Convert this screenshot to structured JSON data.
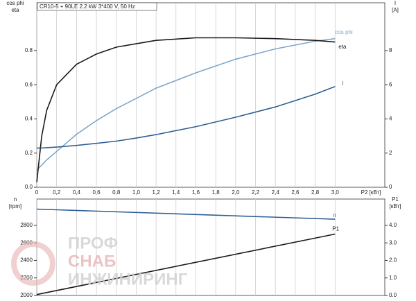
{
  "chart_data": [
    {
      "type": "line",
      "title": "CR10-5 + 90LE   2.2 kW   3*400 V, 50 Hz",
      "ylabel": [
        "cos phi",
        "eta"
      ],
      "y2label": [
        "I",
        "[A]"
      ],
      "xlabel": "P2 [кВт]",
      "x": [
        0,
        0.05,
        0.1,
        0.2,
        0.4,
        0.6,
        0.8,
        1.0,
        1.2,
        1.6,
        2.0,
        2.4,
        2.8,
        3.0
      ],
      "xlim": [
        0,
        3.5
      ],
      "xticks": [
        {
          "value": 0,
          "label": "0"
        },
        {
          "value": 0.2,
          "label": "0,2"
        },
        {
          "value": 0.4,
          "label": "0,4"
        },
        {
          "value": 0.6,
          "label": "0,6"
        },
        {
          "value": 0.8,
          "label": "0,8"
        },
        {
          "value": 1.0,
          "label": "1,0"
        },
        {
          "value": 1.2,
          "label": "1,2"
        },
        {
          "value": 1.4,
          "label": "1,4"
        },
        {
          "value": 1.6,
          "label": "1,6"
        },
        {
          "value": 1.8,
          "label": "1,8"
        },
        {
          "value": 2.0,
          "label": "2,0"
        },
        {
          "value": 2.2,
          "label": "2,2"
        },
        {
          "value": 2.4,
          "label": "2,4"
        },
        {
          "value": 2.6,
          "label": "2,6"
        },
        {
          "value": 2.8,
          "label": "2,8"
        },
        {
          "value": 3.0,
          "label": "3,0"
        }
      ],
      "ylim": [
        0,
        1.08
      ],
      "yticks": [
        {
          "value": 0,
          "label": "0.0"
        },
        0.2,
        0.4,
        0.6,
        0.8
      ],
      "y2lim": [
        0,
        10.8
      ],
      "y2ticks": [
        0,
        2,
        4,
        6,
        8
      ],
      "grid": true,
      "series": [
        {
          "name": "cos phi",
          "color": "#7fa6c8",
          "values": [
            0.1,
            0.13,
            0.16,
            0.21,
            0.31,
            0.39,
            0.46,
            0.52,
            0.58,
            0.67,
            0.75,
            0.81,
            0.855,
            0.87
          ]
        },
        {
          "name": "eta",
          "color": "#1a1a1a",
          "values": [
            0.03,
            0.3,
            0.45,
            0.6,
            0.72,
            0.78,
            0.82,
            0.84,
            0.86,
            0.875,
            0.875,
            0.87,
            0.86,
            0.85
          ]
        },
        {
          "name": "I",
          "color": "#2f5f94",
          "axis": "y2",
          "values": [
            2.3,
            2.3,
            2.32,
            2.35,
            2.45,
            2.57,
            2.7,
            2.88,
            3.08,
            3.55,
            4.1,
            4.7,
            5.45,
            5.9
          ]
        }
      ]
    },
    {
      "type": "line",
      "ylabel": [
        "n",
        "[rpm]"
      ],
      "y2label": [
        "P1",
        "[кВт]"
      ],
      "x": [
        0,
        3.0
      ],
      "xlim": [
        0,
        3.5
      ],
      "xticks": [
        0,
        0.2,
        0.4,
        0.6,
        0.8,
        1.0,
        1.2,
        1.4,
        1.6,
        1.8,
        2.0,
        2.2,
        2.4,
        2.6,
        2.8,
        3.0
      ],
      "ylim": [
        2000,
        3100
      ],
      "yticks": [
        2000,
        2200,
        2400,
        2600,
        2800
      ],
      "y2lim": [
        0,
        5.5
      ],
      "y2ticks": [
        {
          "value": 0,
          "label": "0.0"
        },
        {
          "value": 1,
          "label": "1.0"
        },
        {
          "value": 2,
          "label": "2.0"
        },
        {
          "value": 3,
          "label": "3.0"
        },
        {
          "value": 4,
          "label": "4.0"
        }
      ],
      "grid": true,
      "series": [
        {
          "name": "n",
          "color": "#2f5f94",
          "values": [
            2985,
            2870
          ]
        },
        {
          "name": "P1",
          "color": "#1a1a1a",
          "axis": "y2",
          "values": [
            0.05,
            3.5
          ]
        }
      ]
    }
  ],
  "watermark": [
    "ПРОФ",
    "СНАБ",
    "ИНЖИНИРИНГ"
  ]
}
